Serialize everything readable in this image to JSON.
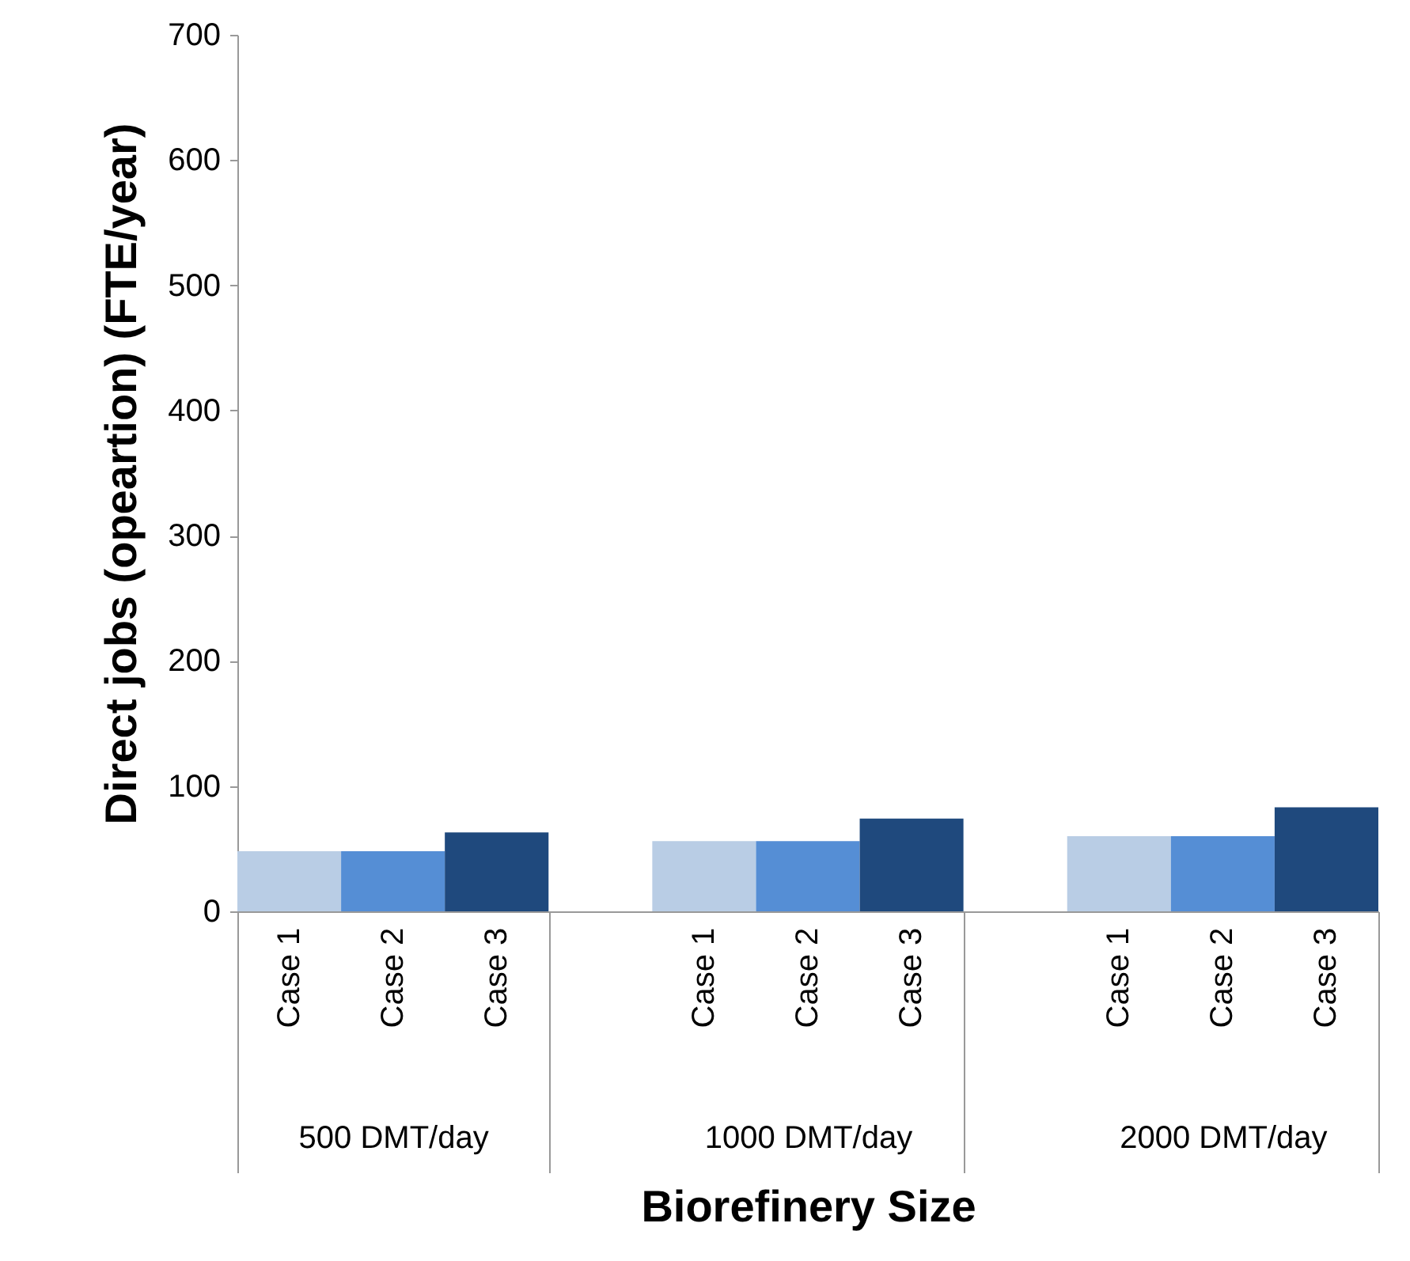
{
  "chart_data": {
    "type": "bar",
    "xlabel": "Biorefinery Size",
    "ylabel": "Direct jobs (opeartion) (FTE/year)",
    "categories": [
      "500 DMT/day",
      "1000 DMT/day",
      "2000 DMT/day"
    ],
    "series": [
      {
        "name": "Case 1",
        "color": "#b9cde5",
        "values": [
          48,
          56,
          60
        ]
      },
      {
        "name": "Case 2",
        "color": "#558ed5",
        "values": [
          48,
          56,
          60
        ]
      },
      {
        "name": "Case 3",
        "color": "#1f497d",
        "values": [
          63,
          74,
          83
        ]
      }
    ],
    "ylim": [
      0,
      700
    ],
    "yticks": [
      0,
      100,
      200,
      300,
      400,
      500,
      600,
      700
    ],
    "grid": false,
    "legend": false
  }
}
